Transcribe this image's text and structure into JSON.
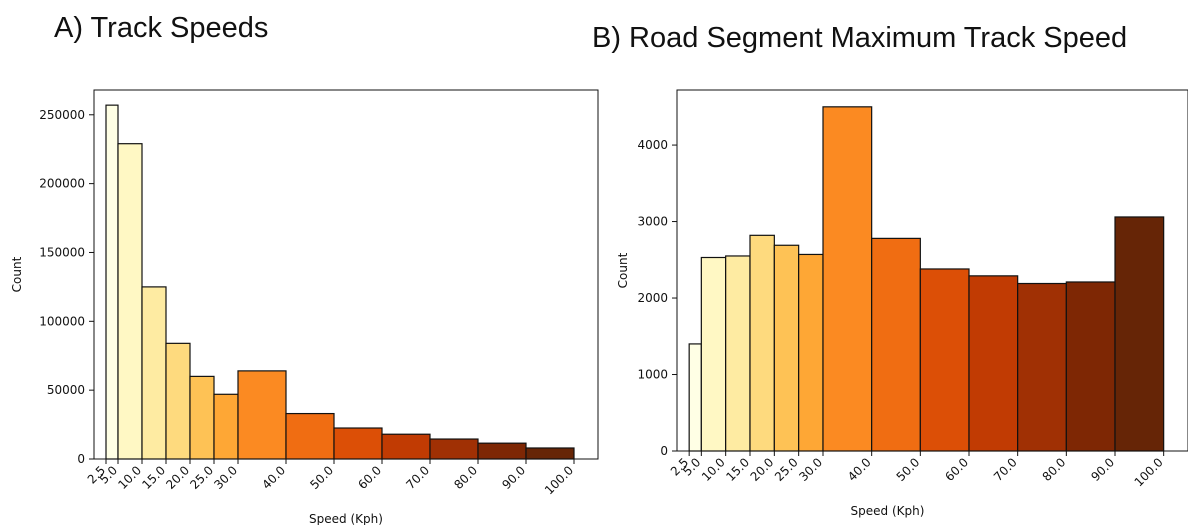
{
  "chart_data": [
    {
      "type": "bar",
      "title": "A) Track Speeds",
      "xlabel": "Speed (Kph)",
      "ylabel": "Count",
      "bin_edges": [
        2.5,
        5.0,
        10.0,
        15.0,
        20.0,
        25.0,
        30.0,
        40.0,
        50.0,
        60.0,
        70.0,
        80.0,
        90.0,
        100.0
      ],
      "x_tick_labels": [
        "2.5",
        "5.0",
        "10.0",
        "15.0",
        "20.0",
        "25.0",
        "30.0",
        "40.0",
        "50.0",
        "60.0",
        "70.0",
        "80.0",
        "90.0",
        "100.0"
      ],
      "values": [
        257000,
        229000,
        125000,
        84000,
        60000,
        47000,
        64000,
        33000,
        22500,
        18000,
        14500,
        11500,
        8000
      ],
      "y_ticks": [
        0,
        50000,
        100000,
        150000,
        200000,
        250000
      ],
      "ylim": [
        0,
        268000
      ],
      "grid": false
    },
    {
      "type": "bar",
      "title": "B) Road Segment Maximum Track Speed",
      "xlabel": "Speed (Kph)",
      "ylabel": "Count",
      "bin_edges": [
        2.5,
        5.0,
        10.0,
        15.0,
        20.0,
        25.0,
        30.0,
        40.0,
        50.0,
        60.0,
        70.0,
        80.0,
        90.0,
        100.0
      ],
      "x_tick_labels": [
        "2.5",
        "5.0",
        "10.0",
        "15.0",
        "20.0",
        "25.0",
        "30.0",
        "40.0",
        "50.0",
        "60.0",
        "70.0",
        "80.0",
        "90.0",
        "100.0"
      ],
      "values": [
        1400,
        2530,
        2550,
        2820,
        2690,
        2570,
        4500,
        2780,
        2380,
        2290,
        2190,
        2210,
        3060
      ],
      "y_ticks": [
        0,
        1000,
        2000,
        3000,
        4000
      ],
      "ylim": [
        0,
        4720
      ],
      "grid": false
    }
  ],
  "colors": [
    "#FFFFE5",
    "#FFF8C4",
    "#FEEBA2",
    "#FEDA7E",
    "#FEC255",
    "#FEA735",
    "#FB8A22",
    "#F06D12",
    "#DC4F06",
    "#C13B03",
    "#A03004",
    "#7E2704",
    "#662506"
  ]
}
